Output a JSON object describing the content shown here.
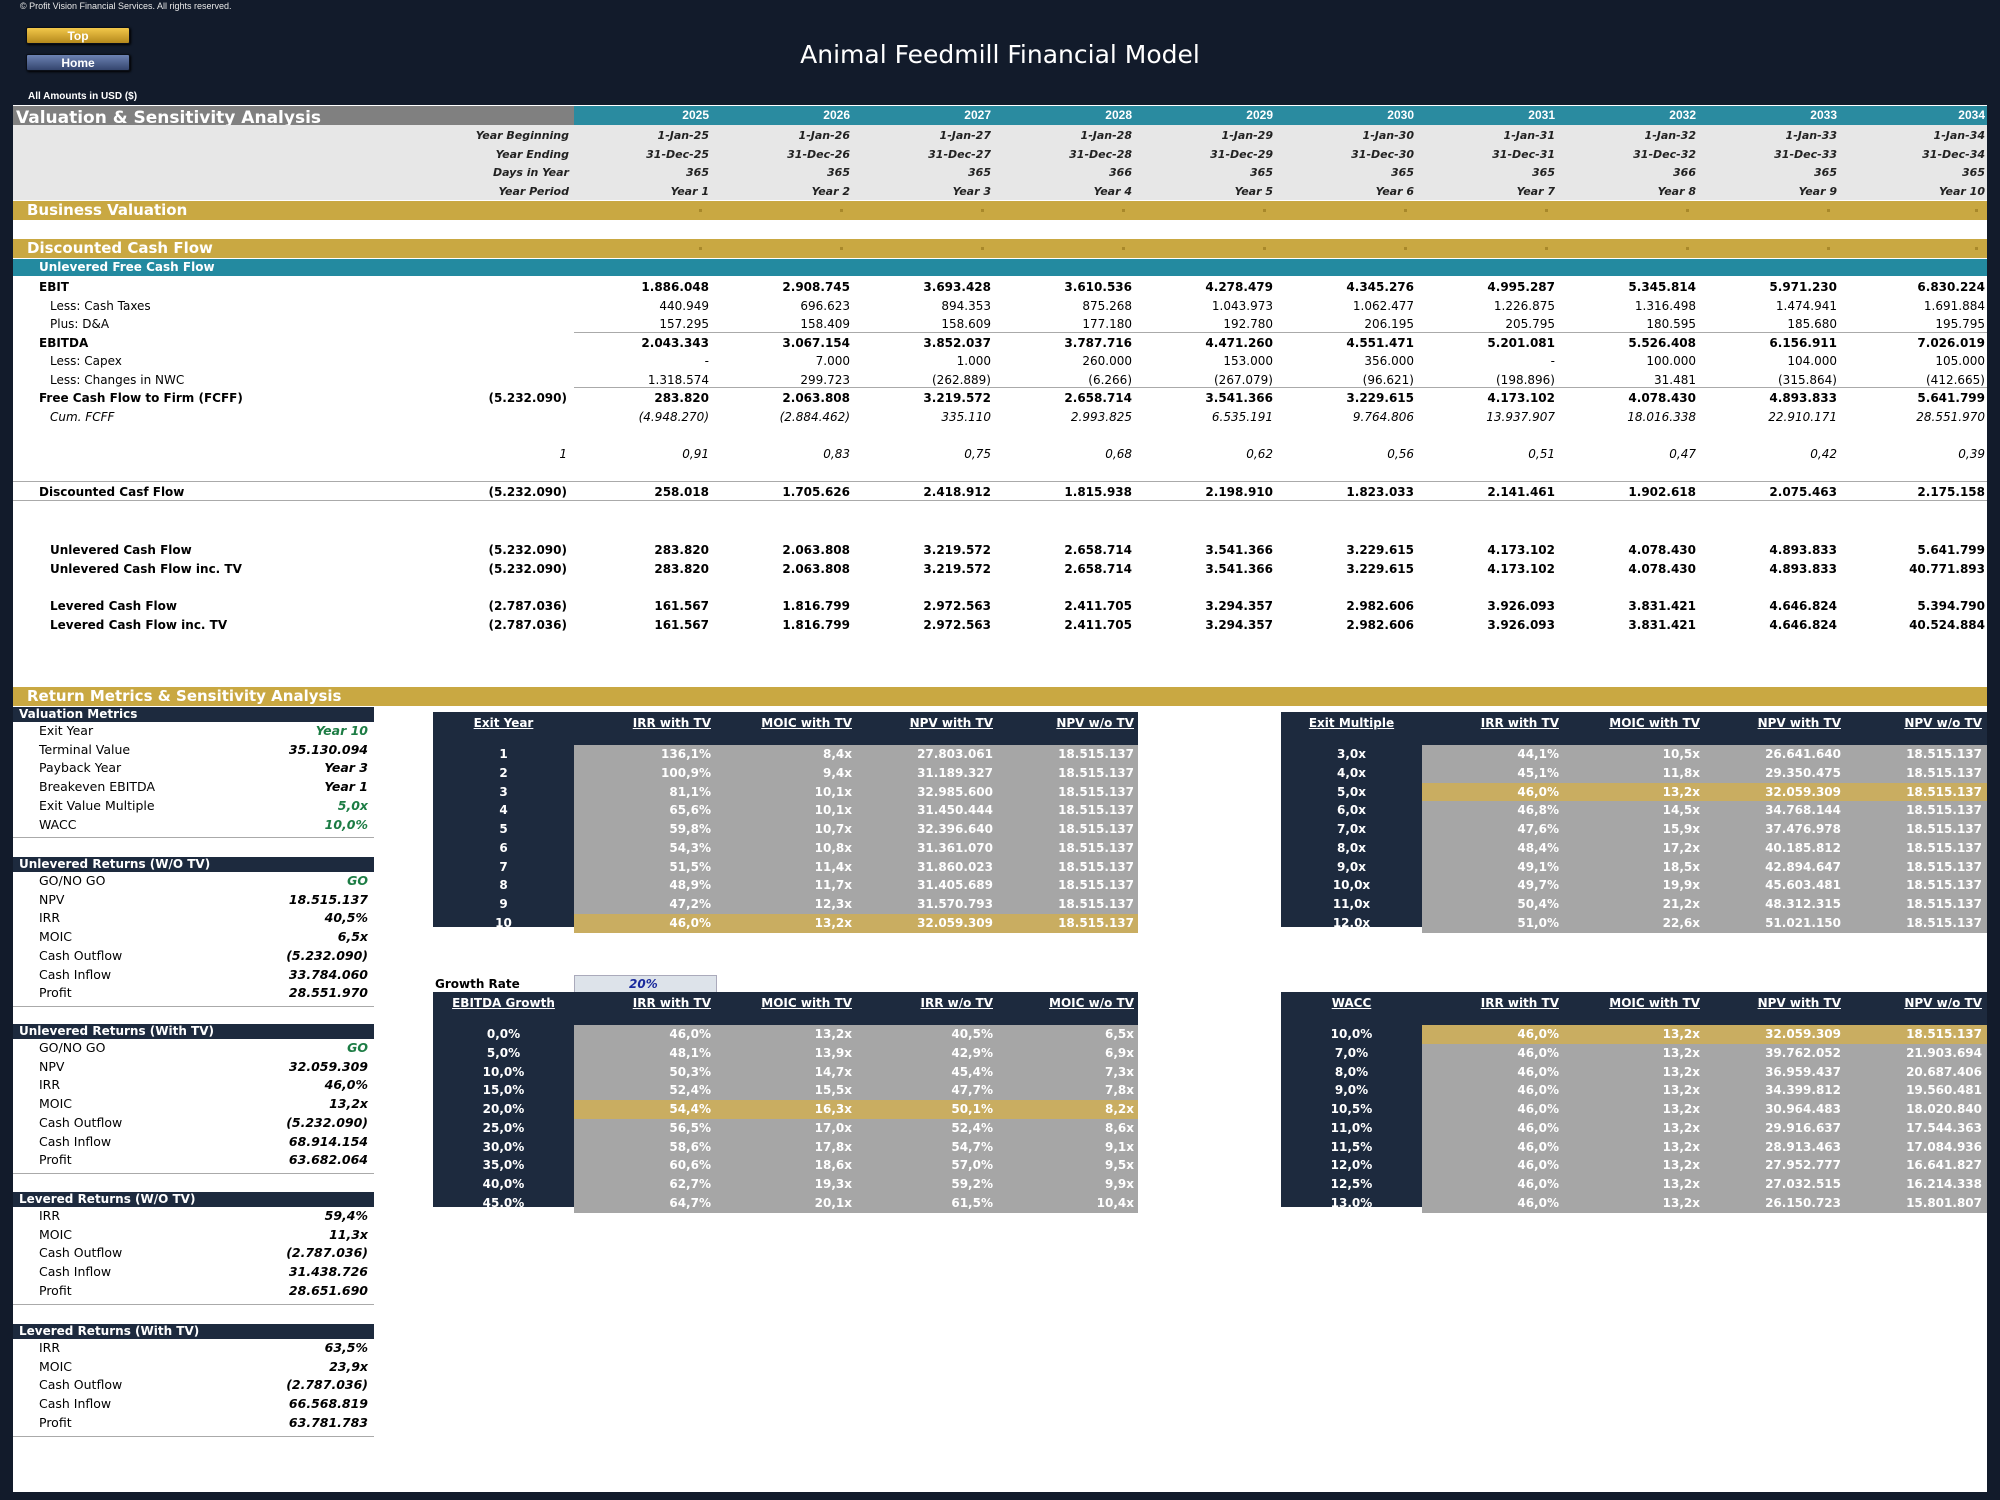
{
  "header": {
    "copyright": "© Profit Vision Financial Services. All rights reserved.",
    "top_button": "Top",
    "home_button": "Home",
    "title": "Animal Feedmill Financial Model",
    "amounts_label": "All Amounts in  USD ($)"
  },
  "section": {
    "title": "Valuation & Sensitivity Analysis"
  },
  "years": [
    "2025",
    "2026",
    "2027",
    "2028",
    "2029",
    "2030",
    "2031",
    "2032",
    "2033",
    "2034"
  ],
  "timeline": {
    "labels": [
      "Year Beginning",
      "Year Ending",
      "Days in Year",
      "Year Period"
    ],
    "rows": [
      [
        "1-Jan-25",
        "1-Jan-26",
        "1-Jan-27",
        "1-Jan-28",
        "1-Jan-29",
        "1-Jan-30",
        "1-Jan-31",
        "1-Jan-32",
        "1-Jan-33",
        "1-Jan-34"
      ],
      [
        "31-Dec-25",
        "31-Dec-26",
        "31-Dec-27",
        "31-Dec-28",
        "31-Dec-29",
        "31-Dec-30",
        "31-Dec-31",
        "31-Dec-32",
        "31-Dec-33",
        "31-Dec-34"
      ],
      [
        "365",
        "365",
        "365",
        "366",
        "365",
        "365",
        "365",
        "366",
        "365",
        "365"
      ],
      [
        "Year 1",
        "Year 2",
        "Year 3",
        "Year 4",
        "Year 5",
        "Year 6",
        "Year 7",
        "Year 8",
        "Year 9",
        "Year 10"
      ]
    ]
  },
  "bars": {
    "business_valuation": "Business Valuation",
    "dcf": "Discounted Cash Flow",
    "ufcf": "Unlevered Free Cash Flow",
    "returns": "Return Metrics & Sensitivity Analysis"
  },
  "dcf_rows": [
    {
      "label": "EBIT",
      "bold": true,
      "indent": 0,
      "total": "",
      "values": [
        "1.886.048",
        "2.908.745",
        "3.693.428",
        "3.610.536",
        "4.278.479",
        "4.345.276",
        "4.995.287",
        "5.345.814",
        "5.971.230",
        "6.830.224"
      ]
    },
    {
      "label": "Less: Cash Taxes",
      "bold": false,
      "indent": 1,
      "total": "",
      "values": [
        "440.949",
        "696.623",
        "894.353",
        "875.268",
        "1.043.973",
        "1.062.477",
        "1.226.875",
        "1.316.498",
        "1.474.941",
        "1.691.884"
      ]
    },
    {
      "label": "Plus: D&A",
      "bold": false,
      "indent": 1,
      "total": "",
      "values": [
        "157.295",
        "158.409",
        "158.609",
        "177.180",
        "192.780",
        "206.195",
        "205.795",
        "180.595",
        "185.680",
        "195.795"
      ]
    },
    {
      "label": "EBITDA",
      "bold": true,
      "indent": 0,
      "total": "",
      "values": [
        "2.043.343",
        "3.067.154",
        "3.852.037",
        "3.787.716",
        "4.471.260",
        "4.551.471",
        "5.201.081",
        "5.526.408",
        "6.156.911",
        "7.026.019"
      ]
    },
    {
      "label": "Less: Capex",
      "bold": false,
      "indent": 1,
      "total": "",
      "values": [
        "-",
        "7.000",
        "1.000",
        "260.000",
        "153.000",
        "356.000",
        "-",
        "100.000",
        "104.000",
        "105.000"
      ]
    },
    {
      "label": "Less: Changes in NWC",
      "bold": false,
      "indent": 1,
      "total": "",
      "values": [
        "1.318.574",
        "299.723",
        "(262.889)",
        "(6.266)",
        "(267.079)",
        "(96.621)",
        "(198.896)",
        "31.481",
        "(315.864)",
        "(412.665)"
      ]
    },
    {
      "label": "Free Cash Flow to Firm (FCFF)",
      "bold": true,
      "indent": 0,
      "total": "(5.232.090)",
      "values": [
        "283.820",
        "2.063.808",
        "3.219.572",
        "2.658.714",
        "3.541.366",
        "3.229.615",
        "4.173.102",
        "4.078.430",
        "4.893.833",
        "5.641.799"
      ]
    },
    {
      "label": "Cum. FCFF",
      "bold": false,
      "italic": true,
      "indent": 1,
      "total": "",
      "values": [
        "(4.948.270)",
        "(2.884.462)",
        "335.110",
        "2.993.825",
        "6.535.191",
        "9.764.806",
        "13.937.907",
        "18.016.338",
        "22.910.171",
        "28.551.970"
      ]
    },
    {
      "label": "",
      "bold": false,
      "italic": true,
      "indent": 0,
      "total": "1",
      "values": [
        "0,91",
        "0,83",
        "0,75",
        "0,68",
        "0,62",
        "0,56",
        "0,51",
        "0,47",
        "0,42",
        "0,39"
      ]
    },
    {
      "label": "Discounted Casf Flow",
      "bold": true,
      "indent": 0,
      "total": "(5.232.090)",
      "values": [
        "258.018",
        "1.705.626",
        "2.418.912",
        "1.815.938",
        "2.198.910",
        "1.823.033",
        "2.141.461",
        "1.902.618",
        "2.075.463",
        "2.175.158"
      ]
    },
    {
      "label": "Unlevered Cash Flow",
      "bold": true,
      "indent": 1,
      "total": "(5.232.090)",
      "values": [
        "283.820",
        "2.063.808",
        "3.219.572",
        "2.658.714",
        "3.541.366",
        "3.229.615",
        "4.173.102",
        "4.078.430",
        "4.893.833",
        "5.641.799"
      ]
    },
    {
      "label": "Unlevered Cash Flow inc. TV",
      "bold": true,
      "indent": 1,
      "total": "(5.232.090)",
      "values": [
        "283.820",
        "2.063.808",
        "3.219.572",
        "2.658.714",
        "3.541.366",
        "3.229.615",
        "4.173.102",
        "4.078.430",
        "4.893.833",
        "40.771.893"
      ]
    },
    {
      "label": "Levered Cash Flow",
      "bold": true,
      "indent": 1,
      "total": "(2.787.036)",
      "values": [
        "161.567",
        "1.816.799",
        "2.972.563",
        "2.411.705",
        "3.294.357",
        "2.982.606",
        "3.926.093",
        "3.831.421",
        "4.646.824",
        "5.394.790"
      ]
    },
    {
      "label": "Levered Cash Flow inc. TV",
      "bold": true,
      "indent": 1,
      "total": "(2.787.036)",
      "values": [
        "161.567",
        "1.816.799",
        "2.972.563",
        "2.411.705",
        "3.294.357",
        "2.982.606",
        "3.926.093",
        "3.831.421",
        "4.646.824",
        "40.524.884"
      ]
    }
  ],
  "panels": [
    {
      "title": "Valuation Metrics",
      "rows": [
        [
          "Exit Year",
          "Year 10",
          true
        ],
        [
          "Terminal Value",
          "35.130.094",
          false
        ],
        [
          "Payback Year",
          "Year 3",
          false
        ],
        [
          "Breakeven EBITDA",
          "Year 1",
          false
        ],
        [
          "Exit Value Multiple",
          "5,0x",
          true
        ],
        [
          "WACC",
          "10,0%",
          true
        ]
      ]
    },
    {
      "title": "Unlevered Returns (W/O TV)",
      "rows": [
        [
          "GO/NO GO",
          "GO",
          true
        ],
        [
          "NPV",
          "18.515.137",
          false
        ],
        [
          "IRR",
          "40,5%",
          false
        ],
        [
          "MOIC",
          "6,5x",
          false
        ],
        [
          "Cash Outflow",
          "(5.232.090)",
          false
        ],
        [
          "Cash Inflow",
          "33.784.060",
          false
        ],
        [
          "Profit",
          "28.551.970",
          false
        ]
      ]
    },
    {
      "title": "Unlevered Returns (With TV)",
      "rows": [
        [
          "GO/NO GO",
          "GO",
          true
        ],
        [
          "NPV",
          "32.059.309",
          false
        ],
        [
          "IRR",
          "46,0%",
          false
        ],
        [
          "MOIC",
          "13,2x",
          false
        ],
        [
          "Cash Outflow",
          "(5.232.090)",
          false
        ],
        [
          "Cash Inflow",
          "68.914.154",
          false
        ],
        [
          "Profit",
          "63.682.064",
          false
        ]
      ]
    },
    {
      "title": "Levered Returns (W/O TV)",
      "rows": [
        [
          "IRR",
          "59,4%",
          false
        ],
        [
          "MOIC",
          "11,3x",
          false
        ],
        [
          "Cash Outflow",
          "(2.787.036)",
          false
        ],
        [
          "Cash Inflow",
          "31.438.726",
          false
        ],
        [
          "Profit",
          "28.651.690",
          false
        ]
      ]
    },
    {
      "title": "Levered Returns (With TV)",
      "rows": [
        [
          "IRR",
          "63,5%",
          false
        ],
        [
          "MOIC",
          "23,9x",
          false
        ],
        [
          "Cash Outflow",
          "(2.787.036)",
          false
        ],
        [
          "Cash Inflow",
          "66.568.819",
          false
        ],
        [
          "Profit",
          "63.781.783",
          false
        ]
      ]
    }
  ],
  "growth": {
    "label": "Growth Rate",
    "value": "20%"
  },
  "tables": [
    {
      "headers": [
        "Exit Year",
        "IRR with TV",
        "MOIC with TV",
        "NPV with TV",
        "NPV w/o TV"
      ],
      "highlight": 9,
      "rows": [
        [
          "1",
          "136,1%",
          "8,4x",
          "27.803.061",
          "18.515.137"
        ],
        [
          "2",
          "100,9%",
          "9,4x",
          "31.189.327",
          "18.515.137"
        ],
        [
          "3",
          "81,1%",
          "10,1x",
          "32.985.600",
          "18.515.137"
        ],
        [
          "4",
          "65,6%",
          "10,1x",
          "31.450.444",
          "18.515.137"
        ],
        [
          "5",
          "59,8%",
          "10,7x",
          "32.396.640",
          "18.515.137"
        ],
        [
          "6",
          "54,3%",
          "10,8x",
          "31.361.070",
          "18.515.137"
        ],
        [
          "7",
          "51,5%",
          "11,4x",
          "31.860.023",
          "18.515.137"
        ],
        [
          "8",
          "48,9%",
          "11,7x",
          "31.405.689",
          "18.515.137"
        ],
        [
          "9",
          "47,2%",
          "12,3x",
          "31.570.793",
          "18.515.137"
        ],
        [
          "10",
          "46,0%",
          "13,2x",
          "32.059.309",
          "18.515.137"
        ]
      ]
    },
    {
      "headers": [
        "Exit Multiple",
        "IRR with TV",
        "MOIC with TV",
        "NPV with TV",
        "NPV w/o TV"
      ],
      "highlight": 2,
      "rows": [
        [
          "3,0x",
          "44,1%",
          "10,5x",
          "26.641.640",
          "18.515.137"
        ],
        [
          "4,0x",
          "45,1%",
          "11,8x",
          "29.350.475",
          "18.515.137"
        ],
        [
          "5,0x",
          "46,0%",
          "13,2x",
          "32.059.309",
          "18.515.137"
        ],
        [
          "6,0x",
          "46,8%",
          "14,5x",
          "34.768.144",
          "18.515.137"
        ],
        [
          "7,0x",
          "47,6%",
          "15,9x",
          "37.476.978",
          "18.515.137"
        ],
        [
          "8,0x",
          "48,4%",
          "17,2x",
          "40.185.812",
          "18.515.137"
        ],
        [
          "9,0x",
          "49,1%",
          "18,5x",
          "42.894.647",
          "18.515.137"
        ],
        [
          "10,0x",
          "49,7%",
          "19,9x",
          "45.603.481",
          "18.515.137"
        ],
        [
          "11,0x",
          "50,4%",
          "21,2x",
          "48.312.315",
          "18.515.137"
        ],
        [
          "12,0x",
          "51,0%",
          "22,6x",
          "51.021.150",
          "18.515.137"
        ]
      ]
    },
    {
      "headers": [
        "EBITDA Growth",
        "IRR with TV",
        "MOIC with TV",
        "IRR w/o TV",
        "MOIC w/o TV"
      ],
      "highlight": 4,
      "rows": [
        [
          "0,0%",
          "46,0%",
          "13,2x",
          "40,5%",
          "6,5x"
        ],
        [
          "5,0%",
          "48,1%",
          "13,9x",
          "42,9%",
          "6,9x"
        ],
        [
          "10,0%",
          "50,3%",
          "14,7x",
          "45,4%",
          "7,3x"
        ],
        [
          "15,0%",
          "52,4%",
          "15,5x",
          "47,7%",
          "7,8x"
        ],
        [
          "20,0%",
          "54,4%",
          "16,3x",
          "50,1%",
          "8,2x"
        ],
        [
          "25,0%",
          "56,5%",
          "17,0x",
          "52,4%",
          "8,6x"
        ],
        [
          "30,0%",
          "58,6%",
          "17,8x",
          "54,7%",
          "9,1x"
        ],
        [
          "35,0%",
          "60,6%",
          "18,6x",
          "57,0%",
          "9,5x"
        ],
        [
          "40,0%",
          "62,7%",
          "19,3x",
          "59,2%",
          "9,9x"
        ],
        [
          "45,0%",
          "64,7%",
          "20,1x",
          "61,5%",
          "10,4x"
        ]
      ]
    },
    {
      "headers": [
        "WACC",
        "IRR with TV",
        "MOIC with TV",
        "NPV with TV",
        "NPV w/o TV"
      ],
      "highlight": 0,
      "rows": [
        [
          "10,0%",
          "46,0%",
          "13,2x",
          "32.059.309",
          "18.515.137"
        ],
        [
          "7,0%",
          "46,0%",
          "13,2x",
          "39.762.052",
          "21.903.694"
        ],
        [
          "8,0%",
          "46,0%",
          "13,2x",
          "36.959.437",
          "20.687.406"
        ],
        [
          "9,0%",
          "46,0%",
          "13,2x",
          "34.399.812",
          "19.560.481"
        ],
        [
          "10,5%",
          "46,0%",
          "13,2x",
          "30.964.483",
          "18.020.840"
        ],
        [
          "11,0%",
          "46,0%",
          "13,2x",
          "29.916.637",
          "17.544.363"
        ],
        [
          "11,5%",
          "46,0%",
          "13,2x",
          "28.913.463",
          "17.084.936"
        ],
        [
          "12,0%",
          "46,0%",
          "13,2x",
          "27.952.777",
          "16.641.827"
        ],
        [
          "12,5%",
          "46,0%",
          "13,2x",
          "27.032.515",
          "16.214.338"
        ],
        [
          "13,0%",
          "46,0%",
          "13,2x",
          "26.150.723",
          "15.801.807"
        ]
      ]
    }
  ]
}
